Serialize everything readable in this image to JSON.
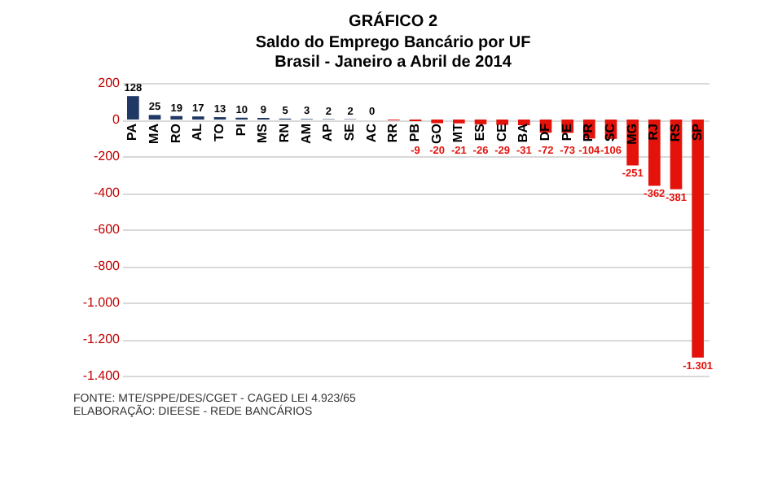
{
  "chart_data": {
    "type": "bar",
    "title": "GRÁFICO 2",
    "subtitle": "Saldo do Emprego Bancário por UF\nBrasil - Janeiro a Abril de 2014",
    "categories": [
      "PA",
      "MA",
      "RO",
      "AL",
      "TO",
      "PI",
      "MS",
      "RN",
      "AM",
      "AP",
      "SE",
      "AC",
      "RR",
      "PB",
      "GO",
      "MT",
      "ES",
      "CE",
      "BA",
      "DF",
      "PE",
      "PR",
      "SC",
      "MG",
      "RJ",
      "RS",
      "SP"
    ],
    "values": [
      128,
      25,
      19,
      17,
      13,
      10,
      9,
      5,
      3,
      2,
      2,
      0,
      -4,
      -9,
      -20,
      -21,
      -26,
      -29,
      -31,
      -72,
      -73,
      -104,
      -106,
      -251,
      -362,
      -381,
      -1301
    ],
    "value_labels": [
      "128",
      "25",
      "19",
      "17",
      "13",
      "10",
      "9",
      "5",
      "3",
      "2",
      "2",
      "0",
      null,
      "-9",
      "-20",
      "-21",
      "-26",
      "-29",
      "-31",
      "-72",
      "-73",
      "-104",
      "-106",
      "-251",
      "-362",
      "-381",
      "-1.301"
    ],
    "colors": [
      "#1f3864",
      "#1f3864",
      "#1f3864",
      "#1f3864",
      "#1f3864",
      "#1f3864",
      "#1f3864",
      "#1f3864",
      "#1f3864",
      "#1f3864",
      "#1f3864",
      "#1f3864",
      "#e3120b",
      "#e3120b",
      "#e3120b",
      "#e3120b",
      "#e3120b",
      "#e3120b",
      "#e3120b",
      "#e3120b",
      "#e3120b",
      "#e3120b",
      "#e3120b",
      "#e3120b",
      "#e3120b",
      "#e3120b",
      "#e3120b"
    ],
    "ylim": [
      -1400,
      200
    ],
    "yticks": [
      {
        "value": -1400,
        "label": "-1.400"
      },
      {
        "value": -1200,
        "label": "-1.200"
      },
      {
        "value": -1000,
        "label": "-1.000"
      },
      -800,
      -600,
      -400,
      -200,
      0,
      200
    ],
    "grid": "y",
    "annotations": [
      "FONTE: MTE/SPPE/DES/CGET - CAGED LEI 4.923/65",
      "ELABORAÇÃO: DIEESE - REDE BANCÁRIOS"
    ]
  }
}
